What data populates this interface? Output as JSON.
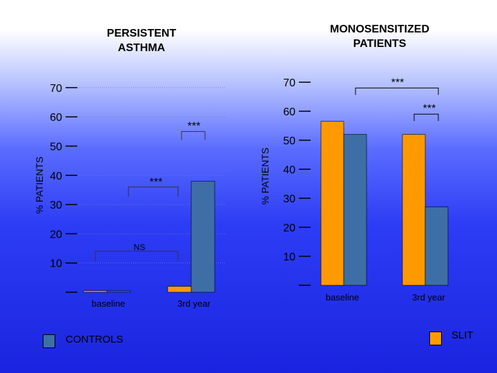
{
  "colors": {
    "slit": "#ff9900",
    "controls": "#3d6fa6",
    "axis": "#000000",
    "grid": "#7a7aa8"
  },
  "legend": {
    "controls_label": "CONTROLS",
    "slit_label": "SLIT"
  },
  "chart_data": [
    {
      "type": "bar",
      "title": "PERSISTENT\nASTHMA",
      "xlabel": "",
      "ylabel": "% PATIENTS",
      "ylim": [
        0,
        70
      ],
      "yticks": [
        "10",
        "20",
        "30",
        "40",
        "50",
        "60",
        "70"
      ],
      "grid": true,
      "categories": [
        "baseline",
        "3rd year"
      ],
      "series": [
        {
          "name": "SLIT",
          "values": [
            0.5,
            2
          ]
        },
        {
          "name": "CONTROLS",
          "values": [
            0.3,
            38
          ]
        }
      ],
      "annotations": [
        {
          "label": "NS",
          "from": 0,
          "to": 1,
          "series": "between groups",
          "y": 14
        },
        {
          "label": "***",
          "from": 0,
          "to": 1,
          "series": "CONTROLS",
          "y": 36
        },
        {
          "label": "***",
          "from": 1,
          "to": 1,
          "series": "SLIT vs CONTROLS",
          "y": 55
        }
      ]
    },
    {
      "type": "bar",
      "title": "MONOSENSITIZED\nPATIENTS",
      "xlabel": "",
      "ylabel": "% PATIENTS",
      "ylim": [
        0,
        70
      ],
      "yticks": [
        "10",
        "20",
        "30",
        "40",
        "50",
        "60",
        "70"
      ],
      "grid": false,
      "categories": [
        "baseline",
        "3rd year"
      ],
      "series": [
        {
          "name": "SLIT",
          "values": [
            56.5,
            52
          ]
        },
        {
          "name": "CONTROLS",
          "values": [
            52,
            27
          ]
        }
      ],
      "annotations": [
        {
          "label": "***",
          "from": 0,
          "to": 1,
          "series": "SLIT vs CONTROLS",
          "y": 68
        },
        {
          "label": "***",
          "from": 1,
          "to": 1,
          "series": "CONTROLS",
          "y": 59
        }
      ]
    }
  ]
}
